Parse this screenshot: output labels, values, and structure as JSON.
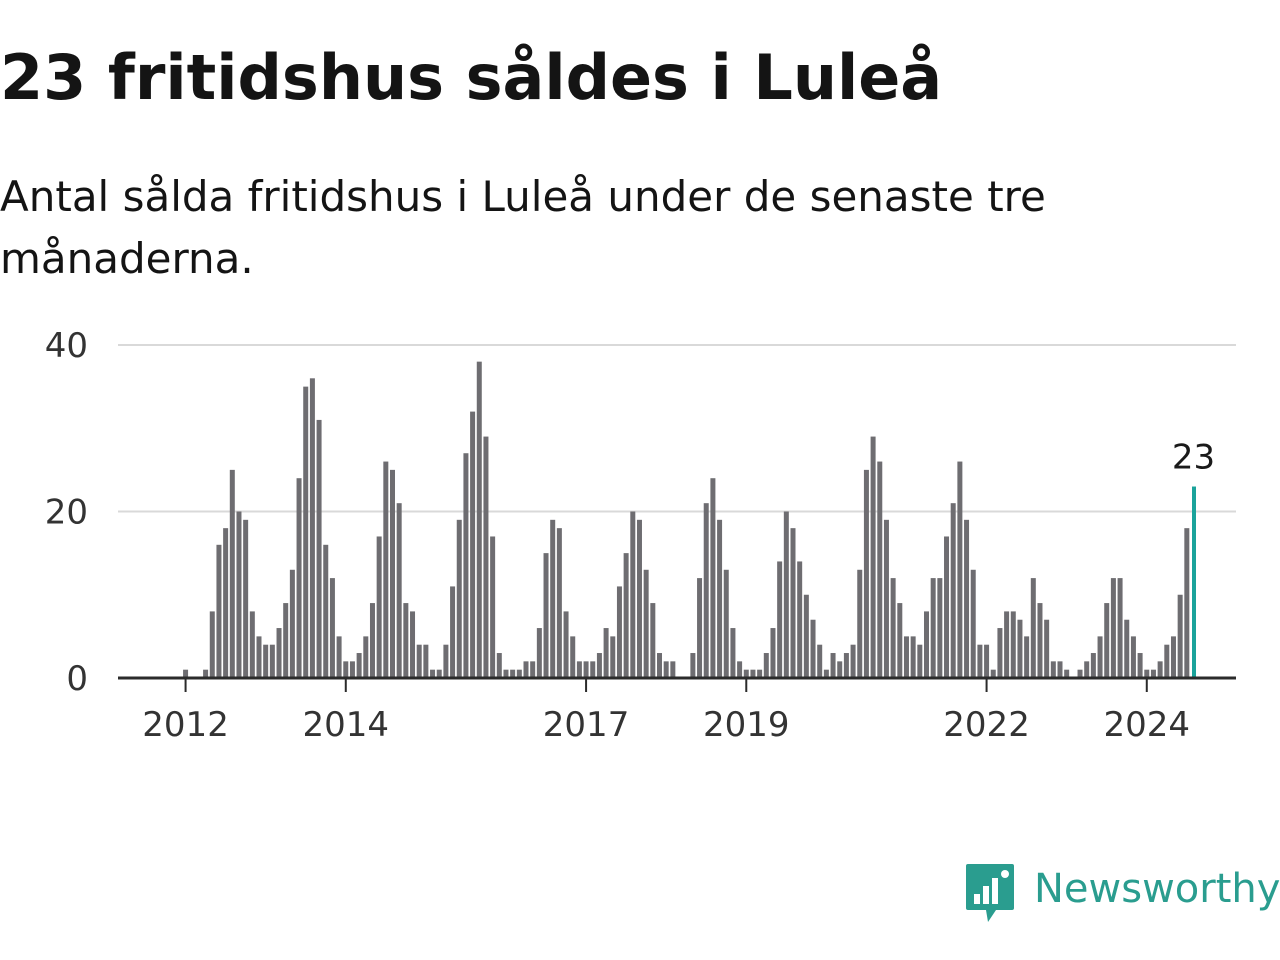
{
  "title": "23 fritidshus såldes i Luleå",
  "subtitle": "Antal sålda fritidshus i Luleå under de senaste tre månaderna.",
  "brand": {
    "name": "Newsworthy",
    "icon": "newsworthy-logo-icon",
    "color": "#2a9d8f"
  },
  "colors": {
    "bar": "#6e6d71",
    "highlight": "#1aa39b",
    "grid": "#d9d9d9",
    "axis": "#2b2b2b"
  },
  "chart_data": {
    "type": "bar",
    "ylim": [
      0,
      40
    ],
    "y_ticks": [
      0,
      20,
      40
    ],
    "grid": true,
    "x_tick_labels": [
      "2012",
      "2014",
      "2017",
      "2019",
      "2022",
      "2024"
    ],
    "x_tick_dates": [
      "2012-01",
      "2014-01",
      "2017-01",
      "2019-01",
      "2022-01",
      "2024-01"
    ],
    "start_month": "2011-04",
    "last_value_label": "23",
    "values": [
      0,
      0,
      0,
      0,
      0,
      0,
      0,
      0,
      0,
      1,
      0,
      0,
      1,
      8,
      16,
      18,
      25,
      20,
      19,
      8,
      5,
      4,
      4,
      6,
      9,
      13,
      24,
      35,
      36,
      31,
      16,
      12,
      5,
      2,
      2,
      3,
      5,
      9,
      17,
      26,
      25,
      21,
      9,
      8,
      4,
      4,
      1,
      1,
      4,
      11,
      19,
      27,
      32,
      38,
      29,
      17,
      3,
      1,
      1,
      1,
      2,
      2,
      6,
      15,
      19,
      18,
      8,
      5,
      2,
      2,
      2,
      3,
      6,
      5,
      11,
      15,
      20,
      19,
      13,
      9,
      3,
      2,
      2,
      0,
      0,
      3,
      12,
      21,
      24,
      19,
      13,
      6,
      2,
      1,
      1,
      1,
      3,
      6,
      14,
      20,
      18,
      14,
      10,
      7,
      4,
      1,
      3,
      2,
      3,
      4,
      13,
      25,
      29,
      26,
      19,
      12,
      9,
      5,
      5,
      4,
      8,
      12,
      12,
      17,
      21,
      26,
      19,
      13,
      4,
      4,
      1,
      6,
      8,
      8,
      7,
      5,
      12,
      9,
      7,
      2,
      2,
      1,
      0,
      1,
      2,
      3,
      5,
      9,
      12,
      12,
      7,
      5,
      3,
      1,
      1,
      2,
      4,
      5,
      10,
      18,
      23
    ]
  }
}
